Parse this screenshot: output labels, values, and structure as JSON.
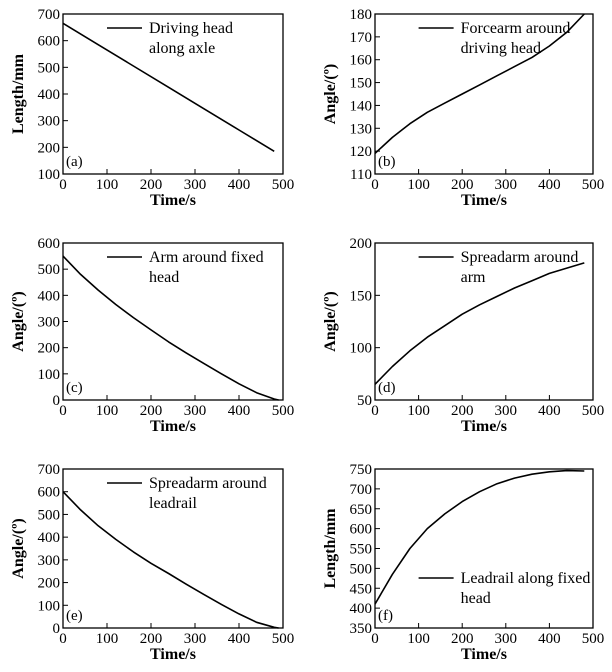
{
  "chart_data": [
    {
      "type": "line",
      "panel_tag": "(a)",
      "xlabel": "Time/s",
      "ylabel": "Length/mm",
      "xlim": [
        0,
        500
      ],
      "ylim": [
        100,
        700
      ],
      "xticks": [
        "0",
        "100",
        "200",
        "300",
        "400",
        "500"
      ],
      "yticks": [
        "100",
        "200",
        "300",
        "400",
        "500",
        "600",
        "700"
      ],
      "legend": [
        "Driving head",
        "along axle"
      ],
      "legend_position": "top-right",
      "series": [
        {
          "x": [
            0,
            80,
            160,
            240,
            320,
            400,
            480
          ],
          "y": [
            665,
            585,
            505,
            425,
            345,
            265,
            185
          ]
        }
      ]
    },
    {
      "type": "line",
      "panel_tag": "(b)",
      "xlabel": "Time/s",
      "ylabel": "Angle/(º)",
      "xlim": [
        0,
        500
      ],
      "ylim": [
        110,
        180
      ],
      "xticks": [
        "0",
        "100",
        "200",
        "300",
        "400",
        "500"
      ],
      "yticks": [
        "110",
        "120",
        "130",
        "140",
        "150",
        "160",
        "170",
        "180"
      ],
      "legend": [
        "Forcearm around",
        "driving head"
      ],
      "legend_position": "top-right",
      "series": [
        {
          "x": [
            0,
            40,
            80,
            120,
            160,
            200,
            240,
            280,
            320,
            360,
            400,
            440,
            480
          ],
          "y": [
            119,
            126,
            132,
            137,
            141,
            145,
            149,
            153,
            157,
            161,
            166,
            172,
            180
          ]
        }
      ]
    },
    {
      "type": "line",
      "panel_tag": "(c)",
      "xlabel": "Time/s",
      "ylabel": "Angle/(º)",
      "xlim": [
        0,
        500
      ],
      "ylim": [
        0,
        600
      ],
      "xticks": [
        "0",
        "100",
        "200",
        "300",
        "400",
        "500"
      ],
      "yticks": [
        "0",
        "100",
        "200",
        "300",
        "400",
        "500",
        "600"
      ],
      "legend": [
        "Arm around fixed",
        "head"
      ],
      "legend_position": "top-right",
      "series": [
        {
          "x": [
            0,
            40,
            80,
            120,
            160,
            200,
            240,
            280,
            320,
            360,
            400,
            440,
            480,
            490
          ],
          "y": [
            550,
            480,
            420,
            365,
            315,
            268,
            222,
            180,
            140,
            100,
            62,
            28,
            4,
            0
          ]
        }
      ]
    },
    {
      "type": "line",
      "panel_tag": "(d)",
      "xlabel": "Time/s",
      "ylabel": "Angle/(º)",
      "xlim": [
        0,
        500
      ],
      "ylim": [
        50,
        200
      ],
      "xticks": [
        "0",
        "100",
        "200",
        "300",
        "400",
        "500"
      ],
      "yticks": [
        "50",
        "100",
        "150",
        "200"
      ],
      "legend": [
        "Spreadarm around",
        "arm"
      ],
      "legend_position": "top-right",
      "series": [
        {
          "x": [
            0,
            40,
            80,
            120,
            160,
            200,
            240,
            280,
            320,
            360,
            400,
            440,
            480
          ],
          "y": [
            65,
            82,
            97,
            110,
            121,
            132,
            141,
            149,
            157,
            164,
            171,
            176,
            181
          ]
        }
      ]
    },
    {
      "type": "line",
      "panel_tag": "(e)",
      "xlabel": "Time/s",
      "ylabel": "Angle/(º)",
      "xlim": [
        0,
        500
      ],
      "ylim": [
        0,
        700
      ],
      "xticks": [
        "0",
        "100",
        "200",
        "300",
        "400",
        "500"
      ],
      "yticks": [
        "0",
        "100",
        "200",
        "300",
        "400",
        "500",
        "600",
        "700"
      ],
      "legend": [
        "Spreadarm around",
        "leadrail"
      ],
      "legend_position": "top-right",
      "series": [
        {
          "x": [
            0,
            40,
            80,
            120,
            160,
            200,
            240,
            280,
            320,
            360,
            400,
            440,
            480,
            490
          ],
          "y": [
            600,
            520,
            450,
            390,
            335,
            285,
            240,
            193,
            148,
            104,
            62,
            25,
            3,
            0
          ]
        }
      ]
    },
    {
      "type": "line",
      "panel_tag": "(f)",
      "xlabel": "Time/s",
      "ylabel": "Length/mm",
      "xlim": [
        0,
        500
      ],
      "ylim": [
        350,
        750
      ],
      "xticks": [
        "0",
        "100",
        "200",
        "300",
        "400",
        "500"
      ],
      "yticks": [
        "350",
        "400",
        "450",
        "500",
        "550",
        "600",
        "650",
        "700",
        "750"
      ],
      "legend": [
        "Leadrail along fixed",
        "head"
      ],
      "legend_position": "bottom-right",
      "series": [
        {
          "x": [
            0,
            40,
            80,
            120,
            160,
            200,
            240,
            280,
            320,
            360,
            400,
            440,
            480
          ],
          "y": [
            410,
            485,
            550,
            600,
            637,
            668,
            693,
            713,
            727,
            737,
            743,
            746,
            745
          ]
        }
      ]
    }
  ]
}
